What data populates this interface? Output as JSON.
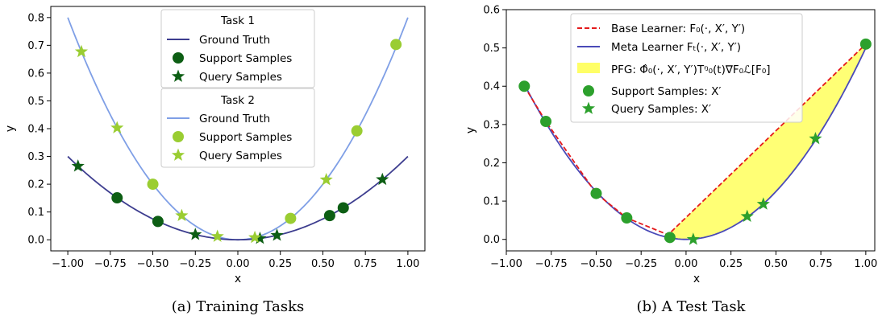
{
  "colors": {
    "task1_line": "#3d3d8f",
    "task1_marker": "#0d5e14",
    "task2_line": "#7f9fe6",
    "task2_marker": "#9acd32",
    "base_learner": "#e41a1c",
    "meta_learner": "#4a4ab8",
    "pfg_fill": "#ffff66",
    "test_marker": "#2ca02c"
  },
  "chart_data": [
    {
      "type": "line",
      "caption": "(a) Training Tasks",
      "xlabel": "x",
      "ylabel": "y",
      "xlim": [
        -1.1,
        1.1
      ],
      "ylim": [
        -0.04,
        0.84
      ],
      "xticks": [
        -1.0,
        -0.75,
        -0.5,
        -0.25,
        0.0,
        0.25,
        0.5,
        0.75,
        1.0
      ],
      "xtick_labels": [
        "−1.00",
        "−0.75",
        "−0.50",
        "−0.25",
        "0.00",
        "0.25",
        "0.50",
        "0.75",
        "1.00"
      ],
      "yticks": [
        0.0,
        0.1,
        0.2,
        0.3,
        0.4,
        0.5,
        0.6,
        0.7,
        0.8
      ],
      "ytick_labels": [
        "0.0",
        "0.1",
        "0.2",
        "0.3",
        "0.4",
        "0.5",
        "0.6",
        "0.7",
        "0.8"
      ],
      "grid": false,
      "legend_position": "top-center",
      "legend": [
        {
          "title": "Task 1",
          "entries": [
            {
              "label": "Ground Truth",
              "kind": "line"
            },
            {
              "label": "Support Samples",
              "kind": "circle"
            },
            {
              "label": "Query Samples",
              "kind": "star"
            }
          ]
        },
        {
          "title": "Task 2",
          "entries": [
            {
              "label": "Ground Truth",
              "kind": "line"
            },
            {
              "label": "Support Samples",
              "kind": "circle"
            },
            {
              "label": "Query Samples",
              "kind": "star"
            }
          ]
        }
      ],
      "series": [
        {
          "task": "Task 1",
          "curve": {
            "coefficient": 0.3,
            "from": -1.0,
            "to": 1.0
          },
          "support": [
            [
              -0.71,
              0.151
            ],
            [
              -0.47,
              0.066
            ],
            [
              0.54,
              0.087
            ],
            [
              0.62,
              0.115
            ]
          ],
          "query": [
            [
              -0.94,
              0.265
            ],
            [
              -0.25,
              0.019
            ],
            [
              0.13,
              0.005
            ],
            [
              0.23,
              0.016
            ],
            [
              0.85,
              0.217
            ]
          ]
        },
        {
          "task": "Task 2",
          "curve": {
            "coefficient": 0.8,
            "from": -1.0,
            "to": 1.0
          },
          "support": [
            [
              -0.5,
              0.2
            ],
            [
              0.31,
              0.077
            ],
            [
              0.7,
              0.392
            ],
            [
              0.93,
              0.703
            ]
          ],
          "query": [
            [
              -0.92,
              0.677
            ],
            [
              -0.71,
              0.403
            ],
            [
              -0.33,
              0.087
            ],
            [
              -0.12,
              0.012
            ],
            [
              0.1,
              0.008
            ],
            [
              0.52,
              0.216
            ]
          ]
        }
      ]
    },
    {
      "type": "line",
      "caption": "(b) A Test Task",
      "xlabel": "x",
      "ylabel": "y",
      "xlim": [
        -1.0,
        1.05
      ],
      "ylim": [
        -0.03,
        0.6
      ],
      "xticks": [
        -1.0,
        -0.75,
        -0.5,
        -0.25,
        0.0,
        0.25,
        0.5,
        0.75,
        1.0
      ],
      "xtick_labels": [
        "−1.00",
        "−0.75",
        "−0.50",
        "−0.25",
        "0.00",
        "0.25",
        "0.50",
        "0.75",
        "1.00"
      ],
      "yticks": [
        0.0,
        0.1,
        0.2,
        0.3,
        0.4,
        0.5,
        0.6
      ],
      "ytick_labels": [
        "0.0",
        "0.1",
        "0.2",
        "0.3",
        "0.4",
        "0.5",
        "0.6"
      ],
      "grid": false,
      "legend_position": "top-center",
      "legend": {
        "base_learner": "Base Learner: F₀(·, X′, Y′)",
        "meta_learner": "Meta Learner Fₜ(·, X′, Y′)",
        "pfg": "PFG: Φ̂₀(·, X′, Y′)Tᵑ₀(t)∇F₀ℒ[F₀]",
        "support": "Support Samples: X′",
        "query": "Query Samples: X′"
      },
      "series": [
        {
          "name": "Base Learner",
          "points": [
            [
              -0.9,
              0.4
            ],
            [
              -0.78,
              0.308
            ],
            [
              -0.5,
              0.12
            ],
            [
              -0.33,
              0.056
            ],
            [
              -0.1,
              0.012
            ],
            [
              1.0,
              0.51
            ]
          ]
        },
        {
          "name": "Meta Learner",
          "curve": {
            "coefficient": 0.5,
            "from": -0.9,
            "to": 1.0
          }
        },
        {
          "name": "Support Samples",
          "points": [
            [
              -0.9,
              0.4
            ],
            [
              -0.78,
              0.308
            ],
            [
              -0.5,
              0.12
            ],
            [
              -0.33,
              0.056
            ],
            [
              -0.09,
              0.005
            ],
            [
              1.0,
              0.51
            ]
          ]
        },
        {
          "name": "Query Samples",
          "points": [
            [
              0.04,
              0.0
            ],
            [
              0.34,
              0.06
            ],
            [
              0.43,
              0.092
            ],
            [
              0.72,
              0.263
            ]
          ]
        }
      ]
    }
  ]
}
